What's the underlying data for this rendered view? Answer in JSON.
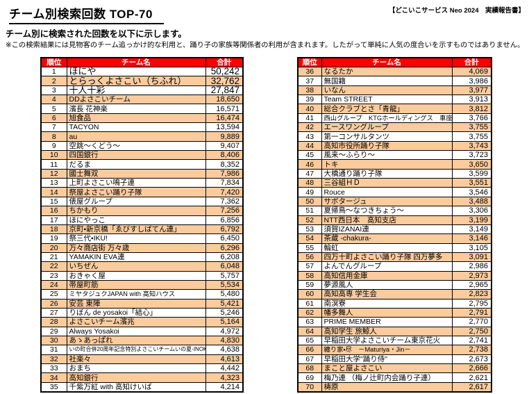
{
  "page": {
    "title": "チーム別検索回数 TOP-70",
    "report_tag": "【どこいこサービス Neo 2024　実績報告書】",
    "subtitle": "チーム別に検索された回数を以下に示します。",
    "note": "※この検索結果には見物客のチーム追っかけ的な利用と、踊り子の家族等関係者の利用が含まれます。したがって単純に人気の度合いを示すものではありません。"
  },
  "table": {
    "headers": {
      "rank": "順位",
      "team": "チーム名",
      "total": "合計"
    },
    "colors": {
      "header_bg": "#ff0000",
      "header_text": "#ffffff",
      "row_alt_bg": "#f9cb9d",
      "row_bg": "#ffffff",
      "border": "#000000"
    }
  },
  "left_rows": [
    {
      "rank": 1,
      "team": "ほにや",
      "total": "50,242"
    },
    {
      "rank": 2,
      "team": "とらっくよさこい（ちふれ）",
      "total": "32,762"
    },
    {
      "rank": 3,
      "team": "十人十彩",
      "total": "27,847"
    },
    {
      "rank": 4,
      "team": "DDよさこいチーム",
      "total": "18,650"
    },
    {
      "rank": 5,
      "team": "濱長 花神楽",
      "total": "16,571"
    },
    {
      "rank": 6,
      "team": "旭食品",
      "total": "16,474"
    },
    {
      "rank": 7,
      "team": "TACYON",
      "total": "13,594"
    },
    {
      "rank": 8,
      "team": "au",
      "total": "9,889"
    },
    {
      "rank": 9,
      "team": "空跳～くどう～",
      "total": "9,407"
    },
    {
      "rank": 10,
      "team": "四国銀行",
      "total": "8,406"
    },
    {
      "rank": 11,
      "team": "だるま",
      "total": "8,352"
    },
    {
      "rank": 12,
      "team": "國士舞双",
      "total": "7,986"
    },
    {
      "rank": 13,
      "team": "上町よさこい鳴子連",
      "total": "7,834"
    },
    {
      "rank": 14,
      "team": "祭屋よさこい踊り子隊",
      "total": "7,420"
    },
    {
      "rank": 15,
      "team": "俵屋グループ",
      "total": "7,362"
    },
    {
      "rank": 16,
      "team": "ちかもり",
      "total": "7,256"
    },
    {
      "rank": 17,
      "team": "ほにやっこ",
      "total": "6,856"
    },
    {
      "rank": 18,
      "team": "京町・新京橋「ゑびすしばてん連」",
      "total": "6,792"
    },
    {
      "rank": 19,
      "team": "祭三代・IKU!",
      "total": "6,450"
    },
    {
      "rank": 20,
      "team": "万々商店街 万々歳",
      "total": "6,296"
    },
    {
      "rank": 21,
      "team": "YAMAKIN EVA連",
      "total": "6,208"
    },
    {
      "rank": 22,
      "team": "いちぜん",
      "total": "6,048"
    },
    {
      "rank": 23,
      "team": "おきゃく屋",
      "total": "5,757"
    },
    {
      "rank": 24,
      "team": "帯屋町筋",
      "total": "5,534"
    },
    {
      "rank": 25,
      "team": "ミヤタジュクJAPAN with 高知ハウス",
      "total": "5,480"
    },
    {
      "rank": 26,
      "team": "安芸 東陣",
      "total": "5,421"
    },
    {
      "rank": 27,
      "team": "りぼん de yosakoi「結心」",
      "total": "5,246"
    },
    {
      "rank": 28,
      "team": "よさこいチーム濱兆",
      "total": "5,164"
    },
    {
      "rank": 29,
      "team": "Always Yosakoi",
      "total": "4,972"
    },
    {
      "rank": 30,
      "team": "あゝあっぱれ",
      "total": "4,830"
    },
    {
      "rank": 31,
      "team": "いの町合併20周年記念特別よさこいチームいの夏-INOKA-",
      "total": "4,638"
    },
    {
      "rank": 32,
      "team": "社楽々",
      "total": "4,613"
    },
    {
      "rank": 33,
      "team": "おまち",
      "total": "4,442"
    },
    {
      "rank": 34,
      "team": "高知銀行",
      "total": "4,323"
    },
    {
      "rank": 35,
      "team": "千紫万紅 with 高知けいば",
      "total": "4,214"
    }
  ],
  "right_rows": [
    {
      "rank": 36,
      "team": "なるたか",
      "total": "4,069"
    },
    {
      "rank": 37,
      "team": "無国籍",
      "total": "3,986"
    },
    {
      "rank": 38,
      "team": "いなん",
      "total": "3,977"
    },
    {
      "rank": 39,
      "team": "Team STREET",
      "total": "3,913"
    },
    {
      "rank": 40,
      "team": "総合クラブとさ「青龍」",
      "total": "3,812"
    },
    {
      "rank": 41,
      "team": "西山グループ　KTGホールディングス　車座",
      "total": "3,766"
    },
    {
      "rank": 42,
      "team": "エースワングループ",
      "total": "3,755"
    },
    {
      "rank": 43,
      "team": "第一コンサルタンツ",
      "total": "3,755"
    },
    {
      "rank": 44,
      "team": "高知市役所踊り子隊",
      "total": "3,743"
    },
    {
      "rank": 45,
      "team": "風来～ふらり～",
      "total": "3,723"
    },
    {
      "rank": 46,
      "team": "トキ",
      "total": "3,650"
    },
    {
      "rank": 47,
      "team": "大橋通り踊り子隊",
      "total": "3,599"
    },
    {
      "rank": 48,
      "team": "三谷組ＨＤ",
      "total": "3,551"
    },
    {
      "rank": 49,
      "team": "Rouce",
      "total": "3,546"
    },
    {
      "rank": 50,
      "team": "サボタージュ",
      "total": "3,488"
    },
    {
      "rank": 51,
      "team": "夏帰鳥～なつきちょう～",
      "total": "3,306"
    },
    {
      "rank": 52,
      "team": "NTT西日本　高知支店",
      "total": "3,199"
    },
    {
      "rank": 53,
      "team": "須賀IZANAI連",
      "total": "3,149"
    },
    {
      "rank": 54,
      "team": "茶蔵 -chakura-",
      "total": "3,146"
    },
    {
      "rank": 55,
      "team": "輪虹",
      "total": "3,105"
    },
    {
      "rank": 56,
      "team": "四万十町よさこい踊り子隊 四万夢多",
      "total": "3,091"
    },
    {
      "rank": 57,
      "team": "よんでんグループ",
      "total": "2,986"
    },
    {
      "rank": 58,
      "team": "高知信用金庫",
      "total": "2,973"
    },
    {
      "rank": 59,
      "team": "夢源風人",
      "total": "2,965"
    },
    {
      "rank": 60,
      "team": "高知高専 学生会",
      "total": "2,823"
    },
    {
      "rank": 61,
      "team": "南溟寮",
      "total": "2,795"
    },
    {
      "rank": 62,
      "team": "幡多舞人",
      "total": "2,791"
    },
    {
      "rank": 63,
      "team": "PRIME MEMBER",
      "total": "2,770"
    },
    {
      "rank": 64,
      "team": "高知学生 旅鯨人",
      "total": "2,750"
    },
    {
      "rank": 65,
      "team": "早稲田大学よさこいチーム東京花火",
      "total": "2,741"
    },
    {
      "rank": 66,
      "team": "纏り家・尽　－Maturiya・Jin－",
      "total": "2,738"
    },
    {
      "rank": 67,
      "team": "早稲田大学\"踊り侍\"",
      "total": "2,673"
    },
    {
      "rank": 68,
      "team": "まこと屋よさこい",
      "total": "2,666"
    },
    {
      "rank": 69,
      "team": "梅乃連 （梅ノ辻町内会踊り子連）",
      "total": "2,621"
    },
    {
      "rank": 70,
      "team": "梼原",
      "total": "2,617"
    }
  ]
}
